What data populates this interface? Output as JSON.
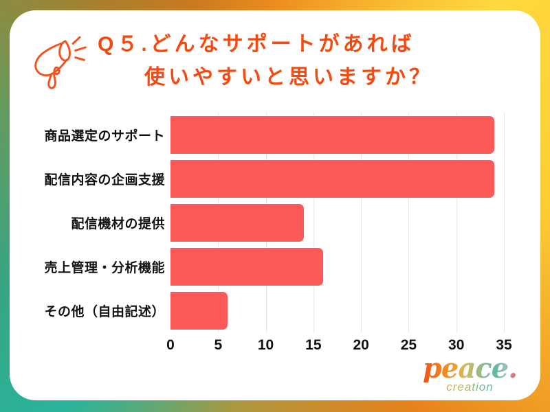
{
  "header": {
    "title_line1": "Q５.どんなサポートがあれば",
    "title_line2": "使いやすいと思いますか？"
  },
  "icons": {
    "title_icon": "megaphone-icon"
  },
  "chart_data": {
    "type": "bar",
    "orientation": "horizontal",
    "title": "Q５.どんなサポートがあれば使いやすいと思いますか？",
    "categories": [
      "商品選定のサポート",
      "配信内容の企画支援",
      "配信機材の提供",
      "売上管理・分析機能",
      "その他（自由記述）"
    ],
    "values": [
      34,
      34,
      14,
      16,
      6
    ],
    "xlabel": "",
    "ylabel": "",
    "xlim": [
      0,
      35
    ],
    "xticks": [
      0,
      5,
      10,
      15,
      20,
      25,
      30,
      35
    ],
    "grid": true,
    "legend": "none"
  },
  "footer": {
    "logo_text": "peace.",
    "logo_subtext": "creation"
  },
  "colors": {
    "accent": "#F5490F",
    "bar": "#FB5A58",
    "gridline": "#E7E7E7",
    "label_text": "#121212",
    "card_background": "#FFFFFF",
    "frame_top": "#EE8C1E",
    "frame_top_right": "#FFD83E",
    "frame_bottom_right": "#E8821B",
    "frame_bottom_left": "#2AB49C",
    "frame_top_left": "#AC7E2B"
  }
}
